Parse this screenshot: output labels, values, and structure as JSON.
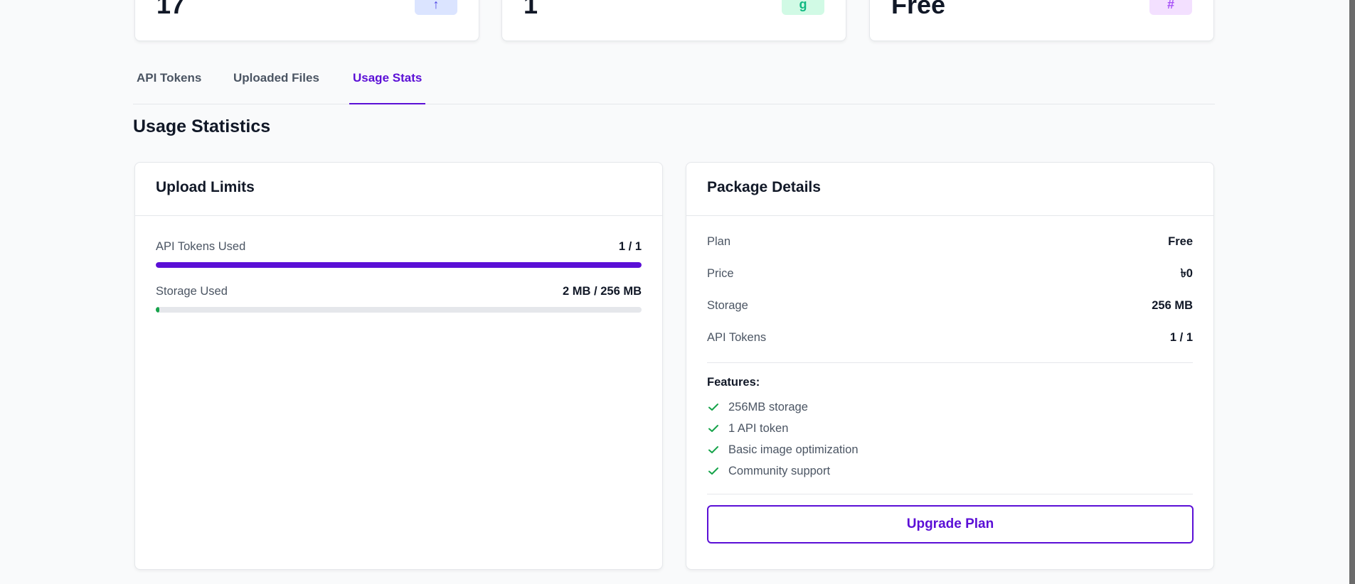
{
  "stats": [
    {
      "value": "17",
      "icon": "key-icon",
      "icon_glyph": "↑",
      "icon_bg": "#dbe4ff",
      "icon_color": "#4f46e5"
    },
    {
      "value": "1",
      "icon": "file-icon",
      "icon_glyph": "g",
      "icon_bg": "#d1fae5",
      "icon_color": "#10b981"
    },
    {
      "value": "Free",
      "icon": "package-icon",
      "icon_glyph": "#",
      "icon_bg": "#f3e0ff",
      "icon_color": "#a855f7"
    }
  ],
  "tabs": [
    {
      "label": "API Tokens",
      "active": false
    },
    {
      "label": "Uploaded Files",
      "active": false
    },
    {
      "label": "Usage Stats",
      "active": true
    }
  ],
  "section_title": "Usage Statistics",
  "upload_limits": {
    "title": "Upload Limits",
    "items": [
      {
        "label": "API Tokens Used",
        "value": "1 / 1",
        "progress": 1.0,
        "color": "#5b0fd6"
      },
      {
        "label": "Storage Used",
        "value": "2 MB / 256 MB",
        "progress": 0.0078,
        "color": "#16a34a"
      }
    ]
  },
  "package_details": {
    "title": "Package Details",
    "rows": [
      {
        "label": "Plan",
        "value": "Free"
      },
      {
        "label": "Price",
        "value": "৳0"
      },
      {
        "label": "Storage",
        "value": "256 MB"
      },
      {
        "label": "API Tokens",
        "value": "1 / 1"
      }
    ],
    "features_title": "Features:",
    "features": [
      "256MB storage",
      "1 API token",
      "Basic image optimization",
      "Community support"
    ],
    "upgrade_label": "Upgrade Plan"
  },
  "colors": {
    "accent": "#5b0fd6",
    "success": "#16a34a"
  }
}
